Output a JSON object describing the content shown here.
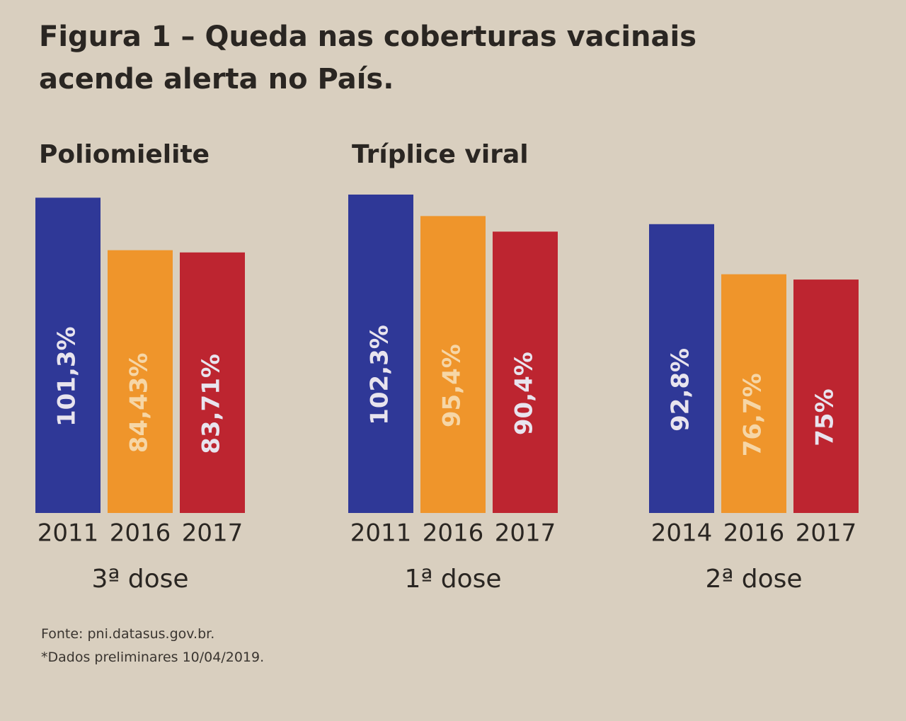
{
  "title": "Figura 1 – Queda nas coberturas vacinais acende alerta no País.",
  "source": "Fonte: pni.datasus.gov.br.",
  "note": "*Dados preliminares 10/04/2019.",
  "chart_data": [
    {
      "type": "bar",
      "title": "Poliomielite",
      "xlabel": "3ª dose",
      "categories": [
        "2011",
        "2016",
        "2017"
      ],
      "values": [
        101.3,
        84.43,
        83.71
      ],
      "value_labels": [
        "101,3%",
        "84,43%",
        "83,71%"
      ],
      "colors": [
        "#2f3897",
        "#ef952b",
        "#bd2530"
      ]
    },
    {
      "type": "bar",
      "title": "Tríplice viral",
      "xlabel": "1ª dose",
      "categories": [
        "2011",
        "2016",
        "2017"
      ],
      "values": [
        102.3,
        95.4,
        90.4
      ],
      "value_labels": [
        "102,3%",
        "95,4%",
        "90,4%"
      ],
      "colors": [
        "#2f3897",
        "#ef952b",
        "#bd2530"
      ]
    },
    {
      "type": "bar",
      "xlabel": "2ª dose",
      "categories": [
        "2014",
        "2016",
        "2017"
      ],
      "values": [
        92.8,
        76.7,
        75
      ],
      "value_labels": [
        "92,8%",
        "76,7%",
        "75%"
      ],
      "colors": [
        "#2f3897",
        "#ef952b",
        "#bd2530"
      ]
    }
  ]
}
